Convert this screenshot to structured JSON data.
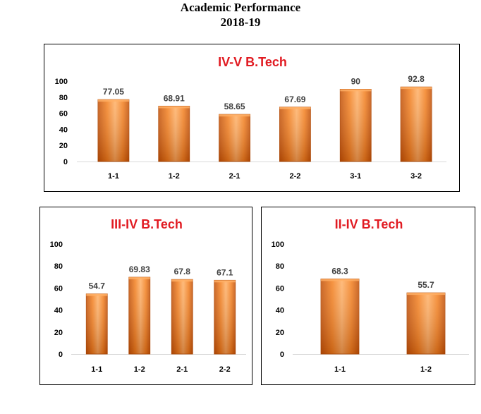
{
  "page": {
    "title_line1": "Academic Performance",
    "title_line2": "2018-19"
  },
  "colors": {
    "bar_light": "#ffb066",
    "bar_mid": "#f4801f",
    "bar_dark": "#c24f05",
    "title_red": "#e11b22"
  },
  "chart_data": [
    {
      "type": "bar",
      "title": "IV-V B.Tech",
      "categories": [
        "1-1",
        "1-2",
        "2-1",
        "2-2",
        "3-1",
        "3-2"
      ],
      "values": [
        77.05,
        68.91,
        58.65,
        67.69,
        90,
        92.8
      ],
      "labels": [
        "77.05",
        "68.91",
        "58.65",
        "67.69",
        "90",
        "92.8"
      ],
      "yticks": [
        "0",
        "20",
        "40",
        "60",
        "80",
        "100"
      ],
      "ylim": [
        0,
        100
      ],
      "grid": false
    },
    {
      "type": "bar",
      "title": "III-IV B.Tech",
      "categories": [
        "1-1",
        "1-2",
        "2-1",
        "2-2"
      ],
      "values": [
        54.7,
        69.83,
        67.8,
        67.1
      ],
      "labels": [
        "54.7",
        "69.83",
        "67.8",
        "67.1"
      ],
      "yticks": [
        "0",
        "20",
        "40",
        "60",
        "80",
        "100"
      ],
      "ylim": [
        0,
        100
      ],
      "grid": false
    },
    {
      "type": "bar",
      "title": "II-IV B.Tech",
      "categories": [
        "1-1",
        "1-2"
      ],
      "values": [
        68.3,
        55.7
      ],
      "labels": [
        "68.3",
        "55.7"
      ],
      "yticks": [
        "0",
        "20",
        "40",
        "60",
        "80",
        "100"
      ],
      "ylim": [
        0,
        100
      ],
      "grid": false
    }
  ]
}
